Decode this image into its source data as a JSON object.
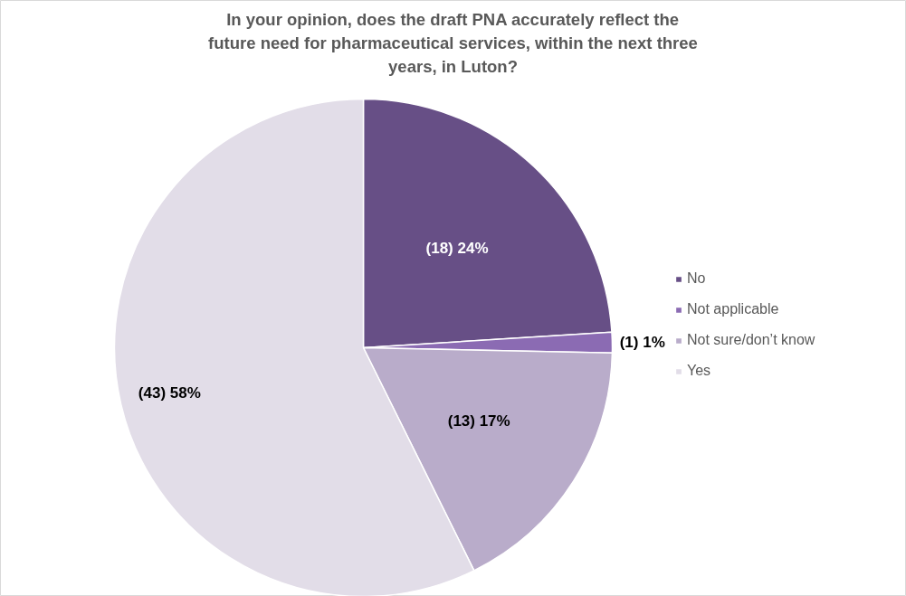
{
  "chart_data": {
    "type": "pie",
    "title": "In your opinion, does the draft PNA accurately reflect the future need for pharmaceutical services, within the next three years, in Luton?",
    "categories": [
      "No",
      "Not applicable",
      "Not sure/don’t know",
      "Yes"
    ],
    "values": [
      18,
      1,
      13,
      43
    ],
    "value_labels": [
      "(18) 24%",
      "(1) 1%",
      "(13) 17%",
      "(43) 58%"
    ],
    "colors": [
      "#674f86",
      "#8b6bb3",
      "#b9acca",
      "#e2dde8"
    ],
    "legend": "right"
  }
}
